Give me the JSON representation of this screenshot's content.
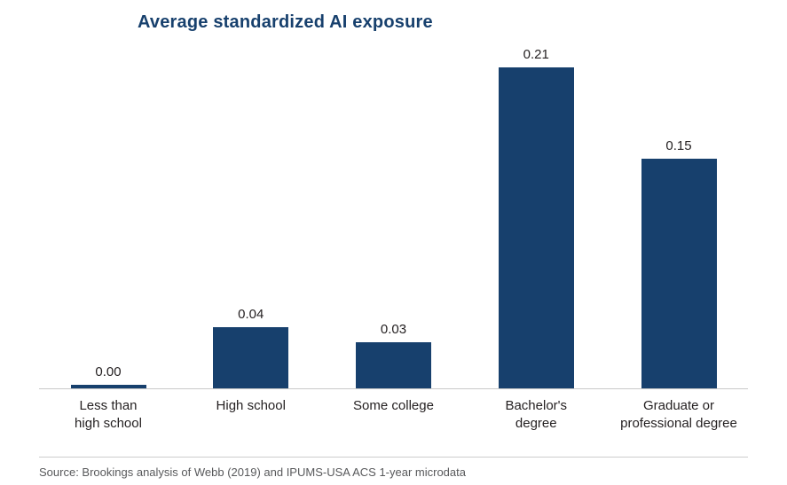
{
  "chart_data": {
    "type": "bar",
    "title": "Average standardized AI exposure",
    "categories": [
      "Less than high school",
      "High school",
      "Some college",
      "Bachelor's degree",
      "Graduate or professional degree"
    ],
    "values": [
      0.0,
      0.04,
      0.03,
      0.21,
      0.15
    ],
    "value_labels": [
      "0.00",
      "0.04",
      "0.03",
      "0.21",
      "0.15"
    ],
    "category_label_lines": [
      [
        "Less than",
        "high school"
      ],
      [
        "High school"
      ],
      [
        "Some college"
      ],
      [
        "Bachelor's",
        "degree"
      ],
      [
        "Graduate or",
        "professional degree"
      ]
    ],
    "xlabel": "",
    "ylabel": "",
    "ylim": [
      0,
      0.22
    ],
    "grid": false,
    "legend": false,
    "bar_color": "#17406d",
    "title_color": "#17406d",
    "value_label_color": "#231f20",
    "category_label_color": "#231f20",
    "axis_line_color": "#c9c9c9",
    "source_text_color": "#58595b"
  },
  "source": {
    "text": "Source: Brookings analysis of Webb (2019) and IPUMS-USA ACS 1-year microdata"
  }
}
